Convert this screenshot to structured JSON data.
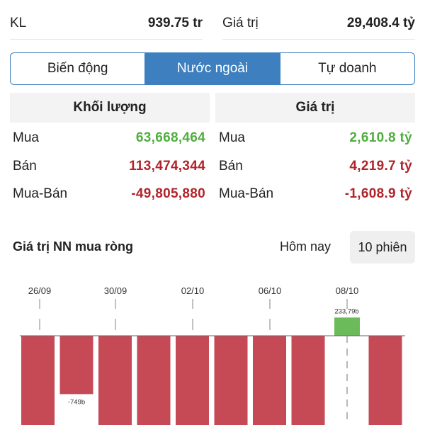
{
  "top_summary": {
    "kl_label": "KL",
    "kl_value": "939.75 tr",
    "gt_label": "Giá trị",
    "gt_value": "29,408.4 tỷ"
  },
  "tabs": [
    {
      "label": "Biến động",
      "active": false
    },
    {
      "label": "Nước ngoài",
      "active": true
    },
    {
      "label": "Tự doanh",
      "active": false
    }
  ],
  "volume_table": {
    "header": "Khối lượng",
    "rows": [
      {
        "label": "Mua",
        "value": "63,668,464",
        "color": "#4fae3d"
      },
      {
        "label": "Bán",
        "value": "113,474,344",
        "color": "#b1242a"
      },
      {
        "label": "Mua-Bán",
        "value": "-49,805,880",
        "color": "#b1242a"
      }
    ]
  },
  "value_table": {
    "header": "Giá trị",
    "rows": [
      {
        "label": "Mua",
        "value": "2,610.8 tỷ",
        "color": "#4fae3d"
      },
      {
        "label": "Bán",
        "value": "4,219.7 tỷ",
        "color": "#b1242a"
      },
      {
        "label": "Mua-Bán",
        "value": "-1,608.9 tỷ",
        "color": "#b1242a"
      }
    ]
  },
  "net_buy_section": {
    "title": "Giá trị NN mua ròng",
    "today_label": "Hôm nay",
    "sessions_label": "10 phiên"
  },
  "chart_data": {
    "type": "bar",
    "x_tick_labels": [
      "26/09",
      "30/09",
      "02/10",
      "06/10",
      "08/10"
    ],
    "bar_count": 10,
    "data_labels": [
      {
        "bar_index": 1,
        "text": "-749b",
        "value": -749
      },
      {
        "bar_index": 8,
        "text": "233,79b",
        "value": 233.79
      }
    ],
    "values": [
      null,
      -749,
      null,
      null,
      null,
      null,
      null,
      null,
      233.79,
      null
    ],
    "negative_color": "#c64a56",
    "positive_color": "#6cbb5b",
    "highlighted_bar_index": 8
  }
}
